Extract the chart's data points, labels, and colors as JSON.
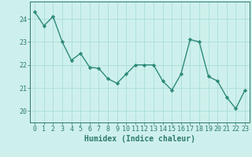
{
  "x": [
    0,
    1,
    2,
    3,
    4,
    5,
    6,
    7,
    8,
    9,
    10,
    11,
    12,
    13,
    14,
    15,
    16,
    17,
    18,
    19,
    20,
    21,
    22,
    23
  ],
  "y": [
    24.3,
    23.7,
    24.1,
    23.0,
    22.2,
    22.5,
    21.9,
    21.85,
    21.4,
    21.2,
    21.6,
    22.0,
    22.0,
    22.0,
    21.3,
    20.9,
    21.6,
    23.1,
    23.0,
    21.5,
    21.3,
    20.6,
    20.1,
    20.9
  ],
  "line_color": "#2e8b7a",
  "marker": "D",
  "marker_size": 2.2,
  "bg_color": "#cef0ec",
  "grid_color": "#aaddda",
  "axis_color": "#2e7a6e",
  "xlabel": "Humidex (Indice chaleur)",
  "ylim": [
    19.5,
    24.75
  ],
  "xlim": [
    -0.5,
    23.5
  ],
  "yticks": [
    20,
    21,
    22,
    23,
    24
  ],
  "xticks": [
    0,
    1,
    2,
    3,
    4,
    5,
    6,
    7,
    8,
    9,
    10,
    11,
    12,
    13,
    14,
    15,
    16,
    17,
    18,
    19,
    20,
    21,
    22,
    23
  ],
  "xlabel_fontsize": 7.0,
  "tick_fontsize": 6.0,
  "line_width": 1.0
}
